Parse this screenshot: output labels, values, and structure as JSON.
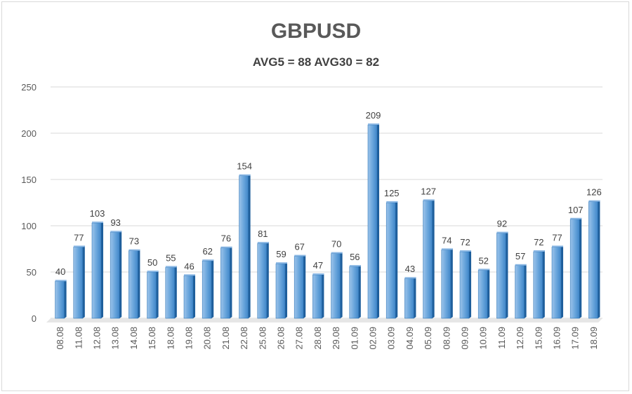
{
  "chart_data": {
    "type": "bar",
    "title": "GBPUSD",
    "subtitle": "AVG5 = 88 AVG30 = 82",
    "xlabel": "",
    "ylabel": "",
    "ylim": [
      0,
      250
    ],
    "yticks": [
      0,
      50,
      100,
      150,
      200,
      250
    ],
    "grid": true,
    "categories": [
      "08.08",
      "11.08",
      "12.08",
      "13.08",
      "14.08",
      "15.08",
      "18.08",
      "19.08",
      "20.08",
      "21.08",
      "22.08",
      "25.08",
      "26.08",
      "27.08",
      "28.08",
      "29.08",
      "01.09",
      "02.09",
      "03.09",
      "04.09",
      "05.09",
      "08.09",
      "09.09",
      "10.09",
      "11.09",
      "12.09",
      "15.09",
      "16.09",
      "17.09",
      "18.09"
    ],
    "values": [
      40,
      77,
      103,
      93,
      73,
      50,
      55,
      46,
      62,
      76,
      154,
      81,
      59,
      67,
      47,
      70,
      56,
      209,
      125,
      43,
      127,
      74,
      72,
      52,
      92,
      57,
      72,
      77,
      107,
      126
    ],
    "bar_color": "#5b9bd5"
  }
}
